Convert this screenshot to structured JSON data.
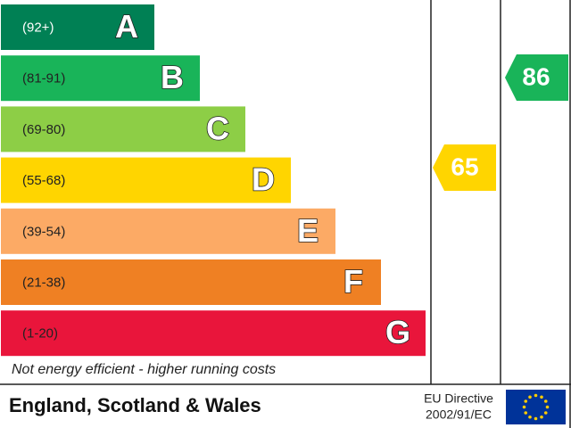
{
  "bands": [
    {
      "range": "(92+)",
      "letter": "A"
    },
    {
      "range": "(81-91)",
      "letter": "B"
    },
    {
      "range": "(69-80)",
      "letter": "C"
    },
    {
      "range": "(55-68)",
      "letter": "D"
    },
    {
      "range": "(39-54)",
      "letter": "E"
    },
    {
      "range": "(21-38)",
      "letter": "F"
    },
    {
      "range": "(1-20)",
      "letter": "G"
    }
  ],
  "current": "65",
  "potential": "86",
  "bottom_note": "Not energy efficient - higher running costs",
  "footer": {
    "region": "England, Scotland & Wales",
    "directive_line1": "EU Directive",
    "directive_line2": "2002/91/EC"
  }
}
